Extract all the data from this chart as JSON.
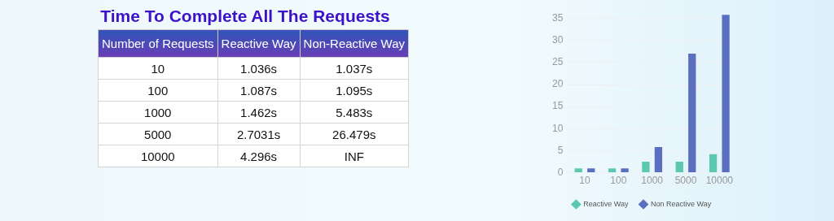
{
  "chart_data": [
    {
      "type": "other",
      "title": "Time To Complete All The Requests",
      "xlabel": "Number of Requests",
      "categories": [
        "10",
        "100",
        "1000",
        "5000",
        "10000"
      ],
      "series": [
        {
          "name": "Reactive Way",
          "values": [
            1.036,
            1.087,
            1.462,
            2.7031,
            4.296
          ],
          "value_labels": [
            "1.036s",
            "1.087s",
            "1.462s",
            "2.7031s",
            "4.296s"
          ]
        },
        {
          "name": "Non-Reactive Way",
          "values": [
            1.037,
            1.095,
            5.483,
            26.479,
            null
          ],
          "value_labels": [
            "1.037s",
            "1.095s",
            "5.483s",
            "26.479s",
            "INF"
          ]
        }
      ]
    },
    {
      "type": "bar",
      "categories": [
        "10",
        "100",
        "1000",
        "5000",
        "10000"
      ],
      "series": [
        {
          "name": "Reactive Way",
          "color": "#5cc8b0",
          "values": [
            1.0,
            1.0,
            2.5,
            2.5,
            4.2
          ]
        },
        {
          "name": "Non Reactive Way",
          "color": "#5b6fc0",
          "values": [
            1.0,
            1.0,
            5.8,
            27.0,
            35.8
          ]
        }
      ],
      "ylim": [
        0,
        36
      ],
      "yticks": [
        0,
        5,
        10,
        15,
        20,
        25,
        30,
        35
      ],
      "grid": "y",
      "legend": "bottom"
    }
  ]
}
